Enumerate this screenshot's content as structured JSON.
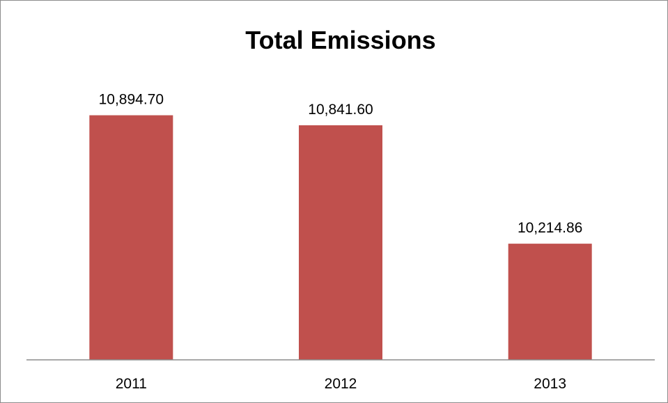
{
  "chart_data": {
    "type": "bar",
    "title": "Total Emissions",
    "xlabel": "",
    "ylabel": "",
    "categories": [
      "2011",
      "2012",
      "2013"
    ],
    "values": [
      10894.7,
      10841.6,
      10214.86
    ],
    "data_labels": [
      "10,894.70",
      "10,841.60",
      "10,214.86"
    ],
    "ylim": [
      9600,
      11000
    ],
    "grid": false,
    "legend": "none",
    "bar_color": "#c0504d",
    "axis_color": "#8c8c8c"
  }
}
